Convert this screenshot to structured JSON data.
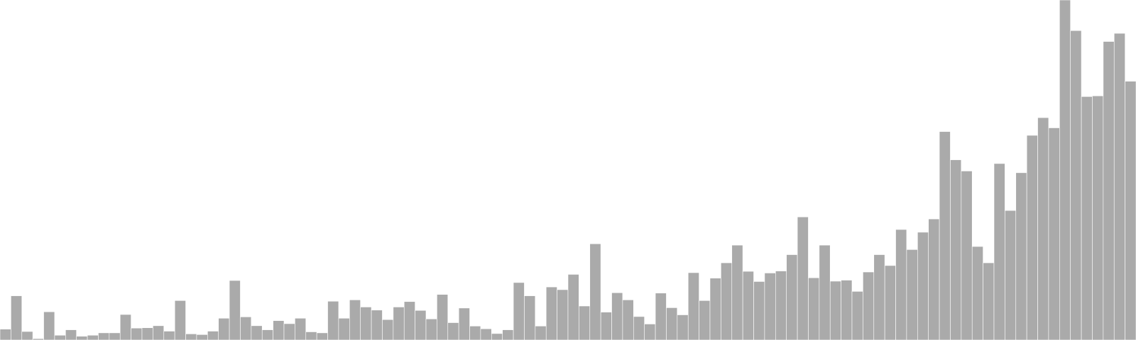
{
  "chart_data": {
    "type": "bar",
    "title": "",
    "xlabel": "",
    "ylabel": "",
    "ylim": [
      0,
      1
    ],
    "grid": false,
    "legend": "none",
    "bar_color": "#aaaaaa",
    "bar_edge_color": "#ffffff",
    "background": "#ffffff",
    "values": [
      0.032,
      0.13,
      0.025,
      0.004,
      0.083,
      0.014,
      0.03,
      0.011,
      0.014,
      0.021,
      0.021,
      0.075,
      0.035,
      0.036,
      0.042,
      0.026,
      0.116,
      0.018,
      0.016,
      0.026,
      0.064,
      0.175,
      0.068,
      0.042,
      0.03,
      0.057,
      0.048,
      0.064,
      0.024,
      0.021,
      0.114,
      0.064,
      0.118,
      0.097,
      0.088,
      0.06,
      0.097,
      0.113,
      0.087,
      0.062,
      0.134,
      0.051,
      0.094,
      0.041,
      0.033,
      0.019,
      0.03,
      0.169,
      0.13,
      0.041,
      0.156,
      0.148,
      0.193,
      0.1,
      0.283,
      0.082,
      0.139,
      0.118,
      0.069,
      0.047,
      0.138,
      0.095,
      0.074,
      0.198,
      0.116,
      0.182,
      0.227,
      0.279,
      0.202,
      0.172,
      0.197,
      0.203,
      0.251,
      0.362,
      0.183,
      0.279,
      0.173,
      0.176,
      0.143,
      0.2,
      0.251,
      0.219,
      0.325,
      0.266,
      0.317,
      0.356,
      0.613,
      0.53,
      0.497,
      0.275,
      0.227,
      0.519,
      0.381,
      0.492,
      0.602,
      0.654,
      0.624,
      1.0,
      0.91,
      0.716,
      0.718,
      0.878,
      0.902,
      0.761
    ]
  }
}
